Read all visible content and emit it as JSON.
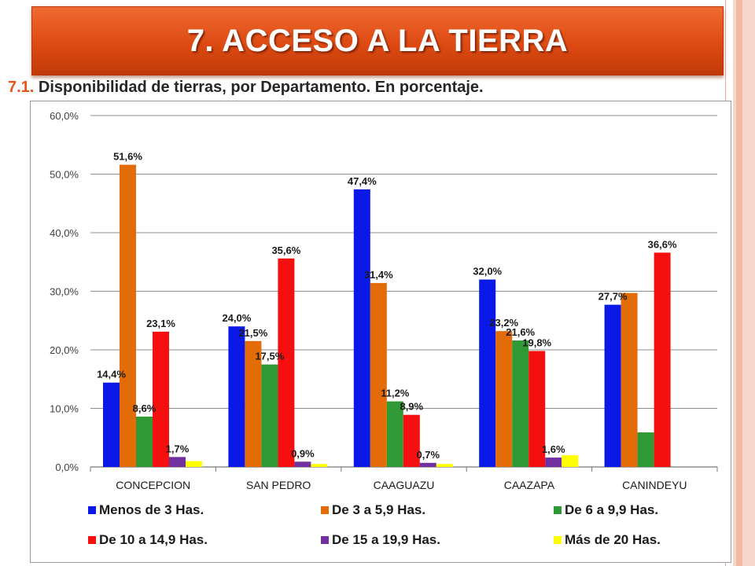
{
  "header": {
    "title": "7. ACCESO A LA TIERRA",
    "subtitle_number": "7.1.",
    "subtitle_text": "Disponibilidad de tierras, por Departamento. En porcentaje."
  },
  "chart_data": {
    "type": "bar",
    "title": "",
    "xlabel": "",
    "ylabel": "",
    "ylim": [
      0,
      60
    ],
    "yticks": [
      "0,0%",
      "10,0%",
      "20,0%",
      "30,0%",
      "40,0%",
      "50,0%",
      "60,0%"
    ],
    "grid": true,
    "legend_position": "bottom",
    "categories": [
      "CONCEPCION",
      "SAN PEDRO",
      "CAAGUAZU",
      "CAAZAPA",
      "CANINDEYU"
    ],
    "series": [
      {
        "name": "Menos de 3 Has.",
        "color": "#0a18e8",
        "values": [
          14.4,
          24.0,
          47.4,
          32.0,
          27.7
        ],
        "labels": [
          "14,4%",
          "24,0%",
          "47,4%",
          "32,0%",
          "27,7%"
        ]
      },
      {
        "name": "De 3 a 5,9 Has.",
        "color": "#e36c09",
        "values": [
          51.6,
          21.5,
          31.4,
          23.2,
          29.7
        ],
        "labels": [
          "51,6%",
          "21,5%",
          "31,4%",
          "23,2%",
          ""
        ]
      },
      {
        "name": "De 6 a 9,9 Has.",
        "color": "#2f9a35",
        "values": [
          8.6,
          17.5,
          11.2,
          21.6,
          5.9
        ],
        "labels": [
          "8,6%",
          "17,5%",
          "11,2%",
          "21,6%",
          ""
        ]
      },
      {
        "name": "De 10 a 14,9 Has.",
        "color": "#f50f0f",
        "values": [
          23.1,
          35.6,
          8.9,
          19.8,
          36.6
        ],
        "labels": [
          "23,1%",
          "35,6%",
          "8,9%",
          "19,8%",
          "36,6%"
        ]
      },
      {
        "name": "De 15 a 19,9 Has.",
        "color": "#7030a0",
        "values": [
          1.7,
          0.9,
          0.7,
          1.6,
          0.0
        ],
        "labels": [
          "1,7%",
          "0,9%",
          "0,7%",
          "1,6%",
          ""
        ]
      },
      {
        "name": "Más de 20 Has.",
        "color": "#ffff00",
        "values": [
          1.0,
          0.5,
          0.5,
          2.0,
          0.0
        ],
        "labels": [
          "",
          "",
          "",
          "",
          ""
        ]
      }
    ]
  }
}
